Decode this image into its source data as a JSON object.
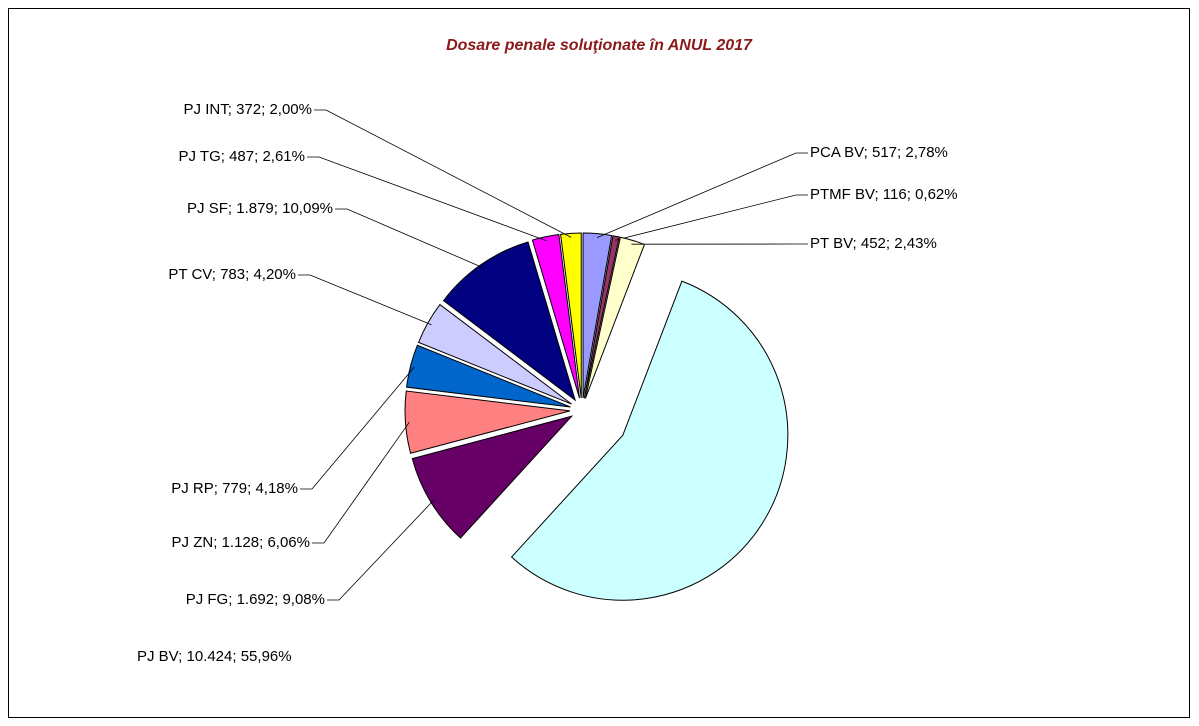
{
  "chart_data": {
    "type": "pie",
    "title": "Dosare penale soluţionate în ANUL 2017",
    "categories": [
      "PCA BV",
      "PTMF BV",
      "PT BV",
      "PJ BV",
      "PJ FG",
      "PJ ZN",
      "PJ RP",
      "PT CV",
      "PJ SF",
      "PJ TG",
      "PJ INT"
    ],
    "values": [
      517,
      116,
      452,
      10424,
      1692,
      1128,
      779,
      783,
      1879,
      487,
      372
    ],
    "value_labels": [
      "517",
      "116",
      "452",
      "10.424",
      "1.692",
      "1.128",
      "779",
      "783",
      "1.879",
      "487",
      "372"
    ],
    "percents": [
      2.78,
      0.62,
      2.43,
      55.96,
      9.08,
      6.06,
      4.18,
      4.2,
      10.09,
      2.61,
      2.0
    ],
    "percent_labels": [
      "2,78%",
      "0,62%",
      "2,43%",
      "55,96%",
      "9,08%",
      "6,06%",
      "4,18%",
      "4,20%",
      "10,09%",
      "2,61%",
      "2,00%"
    ],
    "label_separator": "; ",
    "colors": [
      "#9999ff",
      "#993366",
      "#ffffcc",
      "#ccffff",
      "#660066",
      "#ff8080",
      "#0066cc",
      "#ccccff",
      "#000080",
      "#ff00ff",
      "#ffff00"
    ]
  }
}
